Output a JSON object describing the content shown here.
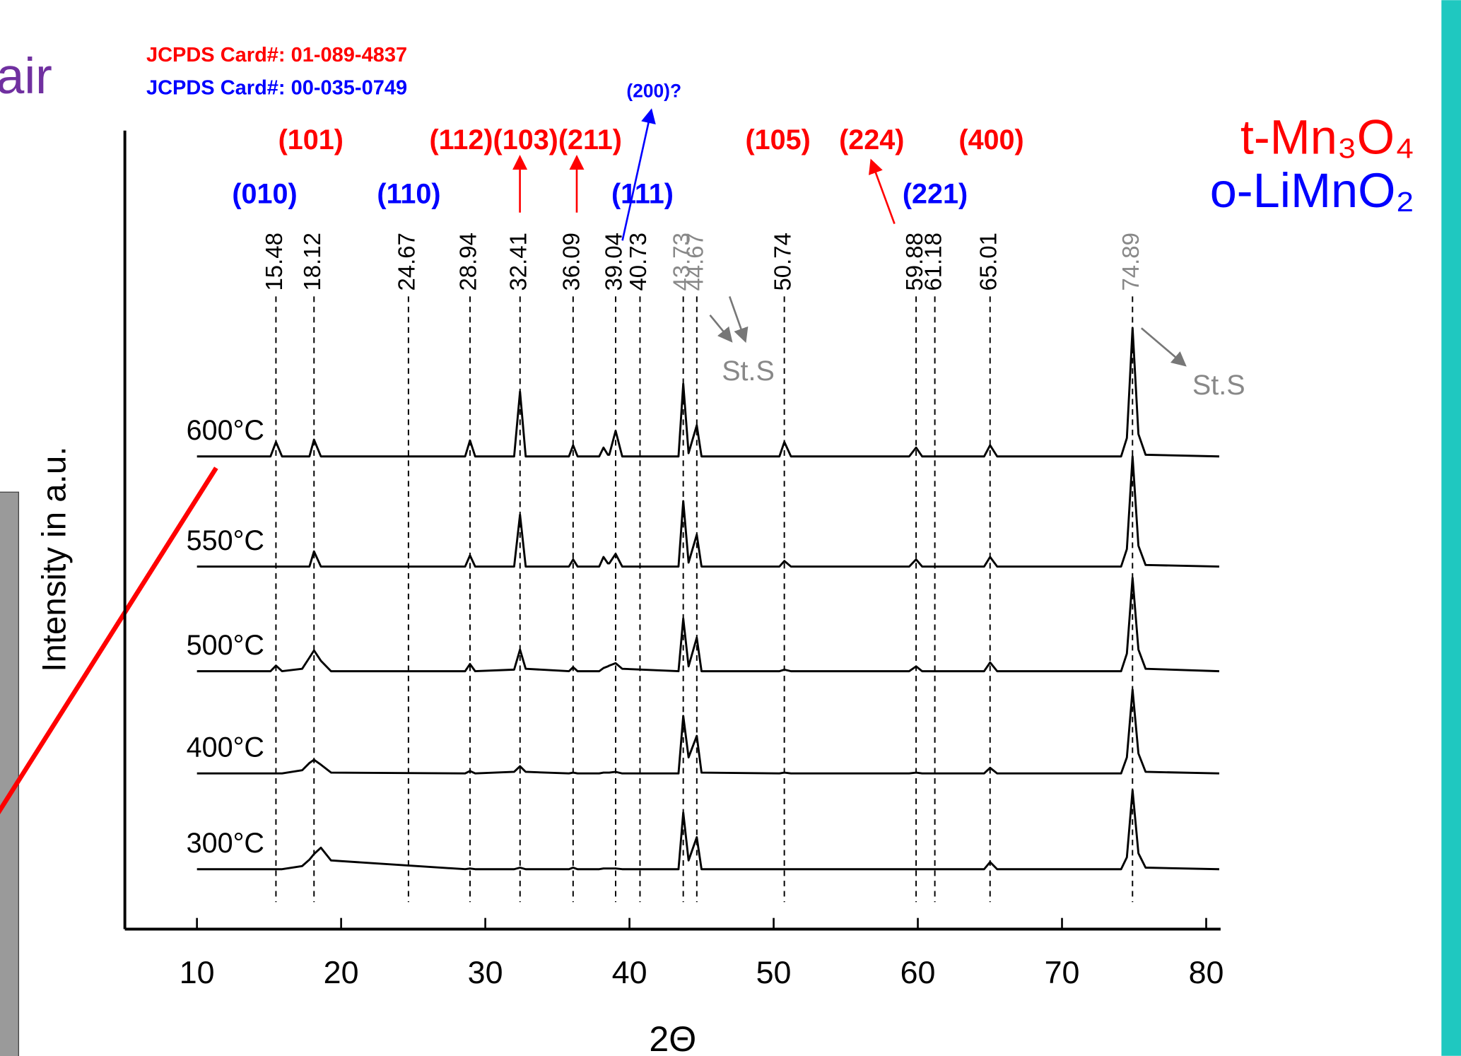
{
  "page_title": "air",
  "chart_data": {
    "type": "line",
    "cards": [
      {
        "text": "JCPDS Card#: 01-089-4837",
        "color": "#ff0000"
      },
      {
        "text": "JCPDS Card#: 00-035-0749",
        "color": "#0000ff"
      }
    ],
    "legend": [
      {
        "text": "t-Mn₃O₄",
        "color": "#ff0000"
      },
      {
        "text": "o-LiMnO₂",
        "color": "#0000ff"
      }
    ],
    "xlabel": "2Θ",
    "ylabel": "Intensity in a.u.",
    "xlim": [
      5,
      81
    ],
    "ylim": [
      0,
      100
    ],
    "xticks": [
      10,
      20,
      30,
      40,
      50,
      60,
      70,
      80
    ],
    "reference_lines": {
      "values": [
        15.48,
        18.12,
        24.67,
        28.94,
        32.41,
        36.09,
        39.04,
        40.73,
        43.73,
        44.67,
        50.74,
        59.88,
        61.18,
        65.01,
        74.89
      ],
      "colors": [
        "#000",
        "#000",
        "#000",
        "#000",
        "#000",
        "#000",
        "#000",
        "#000",
        "#888",
        "#888",
        "#000",
        "#000",
        "#000",
        "#000",
        "#888"
      ]
    },
    "hkl_top": {
      "color": "#ff0000",
      "labels": [
        {
          "text": "(101)",
          "x": 17.9
        },
        {
          "text": "(112)(103)(211)",
          "x": 32.8
        },
        {
          "text": "(105)",
          "x": 50.3
        },
        {
          "text": "(224)",
          "x": 56.8
        },
        {
          "text": "(400)",
          "x": 65.1
        }
      ]
    },
    "hkl_mid": {
      "color": "#0000ff",
      "labels": [
        {
          "text": "(010)",
          "x": 14.7
        },
        {
          "text": "(110)",
          "x": 24.7
        },
        {
          "text": "(111)",
          "x": 40.9
        },
        {
          "text": "(221)",
          "x": 61.2
        }
      ]
    },
    "hkl_high": {
      "color": "#0000ff",
      "labels": [
        {
          "text": "(200)?",
          "x": 41.7
        }
      ]
    },
    "annotations": [
      "St.S",
      "St.S"
    ],
    "x": [
      10,
      15.1,
      15.48,
      15.9,
      17.3,
      17.8,
      18.12,
      18.6,
      19.3,
      28.6,
      28.94,
      29.3,
      32.0,
      32.41,
      32.8,
      35.8,
      36.09,
      36.4,
      37.9,
      38.2,
      38.5,
      38.6,
      39.04,
      39.5,
      43.4,
      43.73,
      44.1,
      44.67,
      45.0,
      50.4,
      50.74,
      51.2,
      59.4,
      59.88,
      60.3,
      64.6,
      65.01,
      65.5,
      74.1,
      74.5,
      74.89,
      75.3,
      75.8,
      80.9
    ],
    "series": [
      {
        "name": "600°C",
        "color": "#000000",
        "values": [
          59.2,
          59.2,
          61.0,
          59.2,
          59.2,
          59.2,
          61.3,
          59.2,
          59.2,
          59.2,
          61.2,
          59.2,
          59.2,
          67.3,
          59.2,
          59.2,
          60.6,
          59.2,
          59.2,
          60.3,
          59.4,
          59.4,
          62.4,
          59.2,
          59.2,
          68.3,
          59.6,
          63.1,
          59.2,
          59.2,
          61.0,
          59.2,
          59.2,
          60.3,
          59.2,
          59.2,
          60.6,
          59.2,
          59.2,
          61.5,
          75.3,
          62.0,
          59.4,
          59.2
        ]
      },
      {
        "name": "550°C",
        "color": "#000000",
        "values": [
          45.4,
          45.4,
          45.4,
          45.4,
          45.4,
          45.4,
          47.3,
          45.4,
          45.4,
          45.4,
          46.8,
          45.4,
          45.4,
          51.9,
          45.4,
          45.4,
          46.3,
          45.4,
          45.4,
          46.6,
          45.8,
          45.8,
          47.0,
          45.4,
          45.4,
          53.6,
          45.9,
          49.4,
          45.4,
          45.4,
          46.1,
          45.4,
          45.4,
          46.3,
          45.4,
          45.4,
          46.6,
          45.4,
          45.4,
          47.6,
          59.2,
          48.0,
          45.6,
          45.4
        ]
      },
      {
        "name": "500°C",
        "color": "#000000",
        "values": [
          32.3,
          32.3,
          33.0,
          32.3,
          32.6,
          34.0,
          34.9,
          33.6,
          32.3,
          32.3,
          33.2,
          32.3,
          32.5,
          35.0,
          32.6,
          32.3,
          32.8,
          32.3,
          32.3,
          32.7,
          32.9,
          33.0,
          33.3,
          32.6,
          32.3,
          38.9,
          32.9,
          36.5,
          32.3,
          32.3,
          32.5,
          32.3,
          32.3,
          32.9,
          32.3,
          32.3,
          33.4,
          32.3,
          32.3,
          34.5,
          44.0,
          35.0,
          32.6,
          32.3
        ]
      },
      {
        "name": "400°C",
        "color": "#000000",
        "values": [
          19.5,
          19.5,
          19.5,
          19.5,
          19.9,
          20.8,
          21.2,
          20.6,
          19.6,
          19.5,
          19.8,
          19.5,
          19.7,
          20.4,
          19.7,
          19.5,
          19.6,
          19.5,
          19.5,
          19.6,
          19.6,
          19.6,
          19.7,
          19.5,
          19.5,
          26.7,
          21.5,
          24.2,
          19.6,
          19.5,
          19.6,
          19.5,
          19.5,
          19.6,
          19.5,
          19.5,
          20.2,
          19.5,
          19.5,
          21.5,
          30.0,
          22.0,
          19.7,
          19.5
        ]
      },
      {
        "name": "300°C",
        "color": "#000000",
        "values": [
          7.5,
          7.5,
          7.5,
          7.5,
          7.9,
          8.7,
          9.4,
          10.2,
          8.6,
          7.5,
          7.6,
          7.5,
          7.5,
          7.7,
          7.5,
          7.5,
          7.7,
          7.5,
          7.5,
          7.6,
          7.6,
          7.6,
          7.6,
          7.5,
          7.5,
          14.6,
          8.6,
          11.5,
          7.5,
          7.5,
          7.5,
          7.5,
          7.5,
          7.5,
          7.5,
          7.5,
          8.4,
          7.5,
          7.5,
          9.0,
          17.4,
          9.5,
          7.7,
          7.5
        ]
      }
    ]
  }
}
